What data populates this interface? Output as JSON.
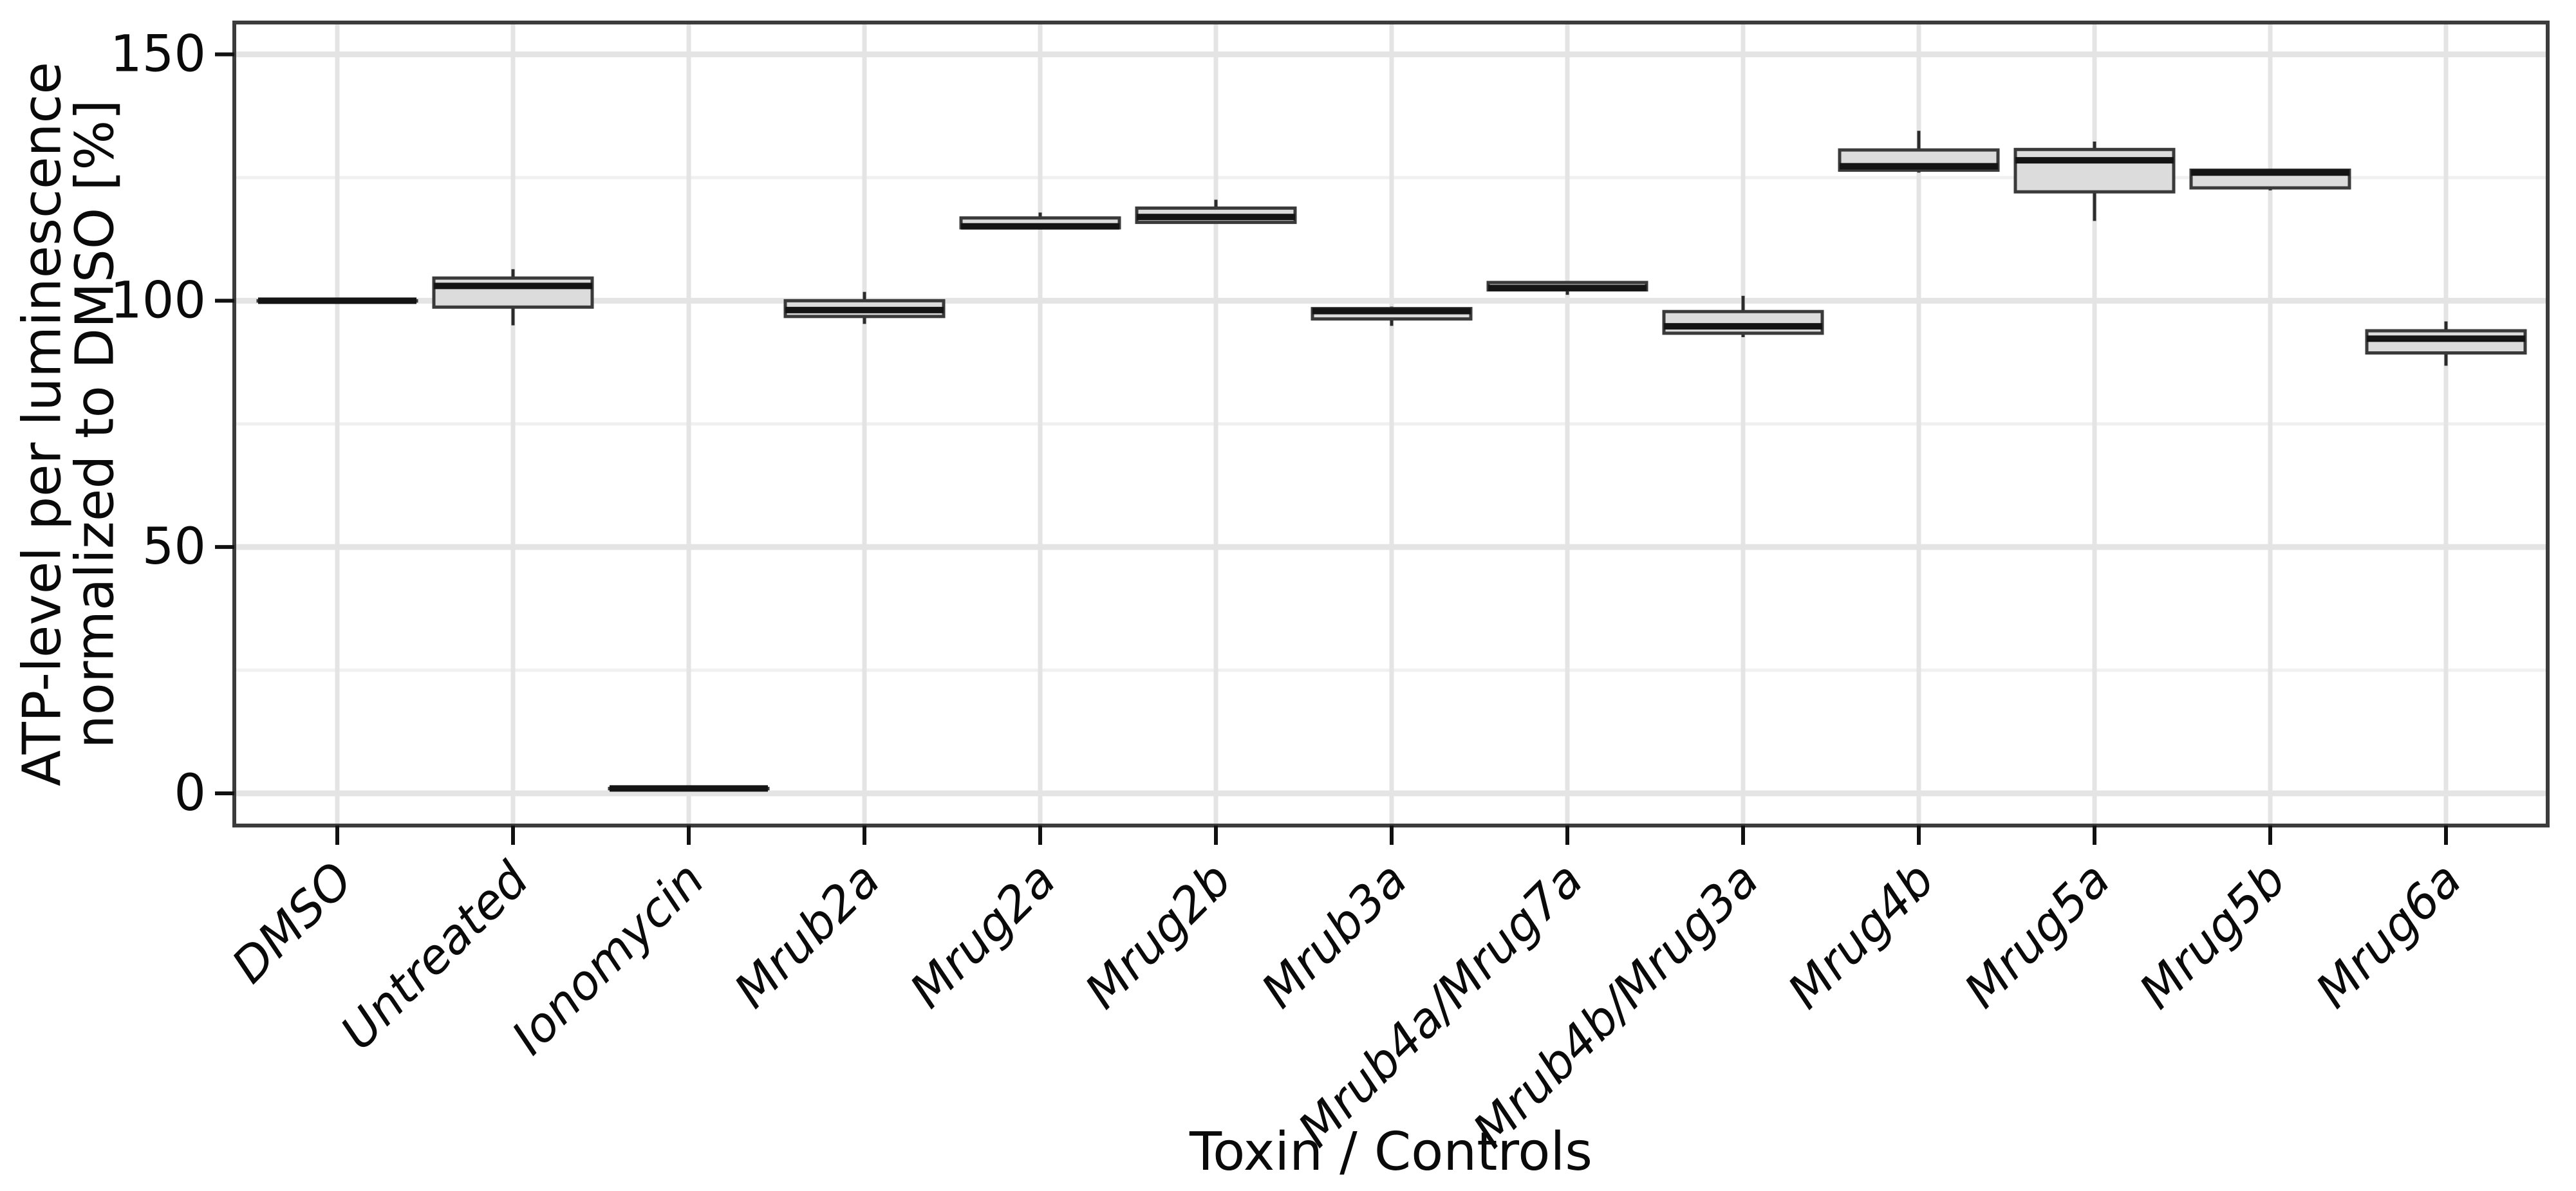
{
  "figure": {
    "x_axis_title": "Toxin / Controls",
    "y_axis_title_line1": "ATP-level per luminescence",
    "y_axis_title_line2": "normalized to DMSO [%]",
    "y_tick_labels": [
      "0",
      "50",
      "100",
      "150"
    ]
  },
  "chart_data": {
    "type": "box",
    "title": "",
    "xlabel": "Toxin / Controls",
    "ylabel": "ATP-level per luminescence normalized to DMSO [%]",
    "categories": [
      "DMSO",
      "Untreated",
      "Ionomycin",
      "Mrub2a",
      "Mrug2a",
      "Mrug2b",
      "Mrub3a",
      "Mrub4a/Mrug7a",
      "Mrub4b/Mrug3a",
      "Mrug4b",
      "Mrug5a",
      "Mrug5b",
      "Mrug6a"
    ],
    "series": [
      {
        "name": "DMSO",
        "min": 100,
        "q1": 100,
        "median": 100,
        "q3": 100,
        "max": 100
      },
      {
        "name": "Untreated",
        "min": 95.0,
        "q1": 98.7,
        "median": 103.0,
        "q3": 104.6,
        "max": 106.4
      },
      {
        "name": "Ionomycin",
        "min": 1,
        "q1": 1,
        "median": 1,
        "q3": 1,
        "max": 1
      },
      {
        "name": "Mrub2a",
        "min": 95.3,
        "q1": 96.8,
        "median": 98.1,
        "q3": 100.0,
        "max": 101.8
      },
      {
        "name": "Mrug2a",
        "min": 114.5,
        "q1": 114.8,
        "median": 115.1,
        "q3": 116.8,
        "max": 117.9
      },
      {
        "name": "Mrug2b",
        "min": 115.8,
        "q1": 115.9,
        "median": 117.0,
        "q3": 118.8,
        "max": 120.5
      },
      {
        "name": "Mrub3a",
        "min": 94.9,
        "q1": 96.3,
        "median": 97.9,
        "q3": 98.4,
        "max": 98.8
      },
      {
        "name": "Mrub4a/Mrug7a",
        "min": 101.2,
        "q1": 102.2,
        "median": 102.6,
        "q3": 103.7,
        "max": 103.8
      },
      {
        "name": "Mrub4b/Mrug3a",
        "min": 92.6,
        "q1": 93.4,
        "median": 94.8,
        "q3": 97.8,
        "max": 101.0
      },
      {
        "name": "Mrug4b",
        "min": 126.0,
        "q1": 126.5,
        "median": 127.3,
        "q3": 130.6,
        "max": 134.5
      },
      {
        "name": "Mrug5a",
        "min": 116.2,
        "q1": 122.1,
        "median": 128.5,
        "q3": 130.7,
        "max": 132.3
      },
      {
        "name": "Mrug5b",
        "min": 122.4,
        "q1": 122.9,
        "median": 126.0,
        "q3": 126.5,
        "max": 126.7
      },
      {
        "name": "Mrug6a",
        "min": 86.8,
        "q1": 89.4,
        "median": 92.3,
        "q3": 93.9,
        "max": 95.8
      }
    ],
    "yticks": [
      0,
      50,
      100,
      150
    ],
    "yticks_minor": [
      25,
      75,
      125
    ],
    "ylim": [
      -6.5,
      156.5
    ],
    "grid": "horizontal major+minor, vertical major at each category",
    "legend": "none",
    "x_label_style": "italic, rotated 45deg",
    "colors": {
      "background": "#ffffff",
      "panel_border": "#3c3c3c",
      "grid_major": "#e4e4e4",
      "grid_minor": "#f0f0f0",
      "box_fill": "#dcdcdc",
      "box_stroke": "#3a3a3a",
      "median": "#141414",
      "whisker": "#2b2b2b",
      "tick": "#111111",
      "text": "#0a0a0a"
    }
  }
}
